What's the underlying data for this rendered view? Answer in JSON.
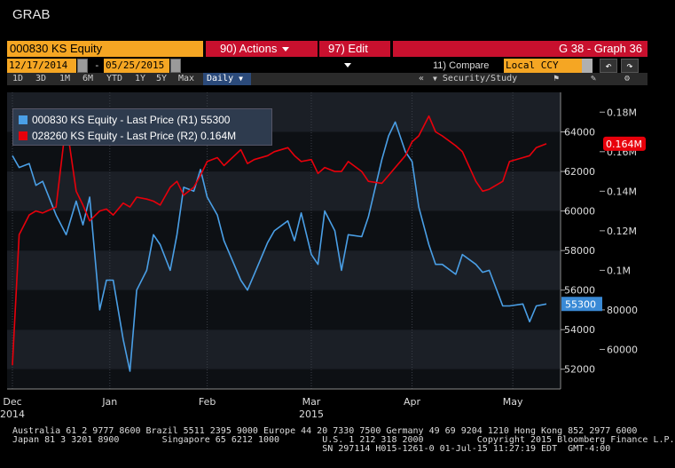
{
  "app_title": "GRAB",
  "header": {
    "security": "000830 KS Equity",
    "actions": "90) Actions",
    "edit": "97) Edit",
    "graph_id": "G 38 - Graph 36",
    "date_start": "12/17/2014",
    "date_end": "05/25/2015",
    "date_sep": "-",
    "compare_label": "11) Compare",
    "currency": "Local CCY",
    "ranges": [
      "1D",
      "3D",
      "1M",
      "6M",
      "YTD",
      "1Y",
      "5Y",
      "Max"
    ],
    "frequency": "Daily",
    "security_study": "Security/Study",
    "icons": [
      "back-arrow-icon",
      "forward-arrow-icon",
      "collapse-icon",
      "dropdown-icon",
      "flag-icon",
      "edit-icon",
      "gear-icon"
    ]
  },
  "legend": {
    "entries": [
      {
        "label": "000830 KS Equity - Last Price (R1) 55300",
        "color": "#4a9fe6"
      },
      {
        "label": "028260 KS Equity - Last Price (R2) 0.164M",
        "color": "#e8000b"
      }
    ]
  },
  "footer": {
    "lines": [
      "Australia 61 2 9777 8600 Brazil 5511 2395 9000 Europe 44 20 7330 7500 Germany 49 69 9204 1210 Hong Kong 852 2977 6000",
      "Japan 81 3 3201 8900        Singapore 65 6212 1000        U.S. 1 212 318 2000          Copyright 2015 Bloomberg Finance L.P.",
      "                                                          SN 297114 H015-1261-0 01-Jul-15 11:27:19 EDT  GMT-4:00"
    ]
  },
  "chart_data": {
    "type": "line",
    "x_axis_labels": [
      {
        "month": "Dec",
        "year": "2014",
        "date": "2014-12-17"
      },
      {
        "month": "Jan",
        "year": "",
        "date": "2015-01-15"
      },
      {
        "month": "Feb",
        "year": "",
        "date": "2015-02-13"
      },
      {
        "month": "Mar",
        "year": "2015",
        "date": "2015-03-16"
      },
      {
        "month": "Apr",
        "year": "",
        "date": "2015-04-15"
      },
      {
        "month": "May",
        "year": "",
        "date": "2015-05-15"
      }
    ],
    "x_range": [
      "2014-12-17",
      "2015-05-25"
    ],
    "axes": {
      "R1": {
        "ticks": [
          52000,
          54000,
          56000,
          58000,
          60000,
          62000,
          64000
        ],
        "range": [
          51000,
          66000
        ]
      },
      "R2": {
        "ticks": [
          60000,
          80000,
          100000,
          120000,
          140000,
          160000,
          180000
        ],
        "tick_labels": [
          "60000",
          "80000",
          "0.1M",
          "0.12M",
          "0.14M",
          "0.16M",
          "0.18M"
        ],
        "range": [
          40000,
          190000
        ]
      }
    },
    "last_value_labels": {
      "R1": "55300",
      "R2": "0.164M"
    },
    "series": [
      {
        "name": "000830 KS Equity - Last Price (R1)",
        "axis": "R1",
        "color": "#4a9fe6",
        "x": [
          "2014-12-17",
          "2014-12-19",
          "2014-12-22",
          "2014-12-24",
          "2014-12-26",
          "2014-12-30",
          "2015-01-02",
          "2015-01-05",
          "2015-01-07",
          "2015-01-09",
          "2015-01-12",
          "2015-01-14",
          "2015-01-16",
          "2015-01-19",
          "2015-01-21",
          "2015-01-23",
          "2015-01-26",
          "2015-01-28",
          "2015-01-30",
          "2015-02-02",
          "2015-02-04",
          "2015-02-06",
          "2015-02-09",
          "2015-02-11",
          "2015-02-13",
          "2015-02-16",
          "2015-02-18",
          "2015-02-23",
          "2015-02-25",
          "2015-02-27",
          "2015-03-03",
          "2015-03-05",
          "2015-03-09",
          "2015-03-11",
          "2015-03-13",
          "2015-03-16",
          "2015-03-18",
          "2015-03-20",
          "2015-03-23",
          "2015-03-25",
          "2015-03-27",
          "2015-03-31",
          "2015-04-02",
          "2015-04-06",
          "2015-04-08",
          "2015-04-10",
          "2015-04-13",
          "2015-04-15",
          "2015-04-17",
          "2015-04-20",
          "2015-04-22",
          "2015-04-24",
          "2015-04-28",
          "2015-04-30",
          "2015-05-04",
          "2015-05-06",
          "2015-05-08",
          "2015-05-12",
          "2015-05-14",
          "2015-05-18",
          "2015-05-20",
          "2015-05-22",
          "2015-05-25"
        ],
        "values": [
          62800,
          62200,
          62400,
          61300,
          61500,
          59800,
          58800,
          60500,
          59300,
          60700,
          55000,
          56500,
          56500,
          53500,
          51900,
          56000,
          57000,
          58800,
          58300,
          57000,
          58800,
          61200,
          61000,
          62100,
          60700,
          59800,
          58500,
          56500,
          56000,
          56800,
          58400,
          59000,
          59500,
          58500,
          59900,
          57800,
          57300,
          60000,
          59000,
          57000,
          58800,
          58700,
          59700,
          62600,
          63800,
          64500,
          63000,
          62500,
          60200,
          58300,
          57300,
          57300,
          56800,
          57800,
          57300,
          56900,
          57000,
          55200,
          55200,
          55300,
          54400,
          55200,
          55300
        ]
      },
      {
        "name": "028260 KS Equity - Last Price (R2)",
        "axis": "R2",
        "color": "#e8000b",
        "x": [
          "2014-12-17",
          "2014-12-19",
          "2014-12-22",
          "2014-12-24",
          "2014-12-26",
          "2014-12-30",
          "2015-01-02",
          "2015-01-05",
          "2015-01-07",
          "2015-01-09",
          "2015-01-12",
          "2015-01-14",
          "2015-01-16",
          "2015-01-19",
          "2015-01-21",
          "2015-01-23",
          "2015-01-26",
          "2015-01-28",
          "2015-01-30",
          "2015-02-02",
          "2015-02-04",
          "2015-02-06",
          "2015-02-09",
          "2015-02-11",
          "2015-02-13",
          "2015-02-16",
          "2015-02-18",
          "2015-02-23",
          "2015-02-25",
          "2015-02-27",
          "2015-03-03",
          "2015-03-05",
          "2015-03-09",
          "2015-03-11",
          "2015-03-13",
          "2015-03-16",
          "2015-03-18",
          "2015-03-20",
          "2015-03-23",
          "2015-03-25",
          "2015-03-27",
          "2015-03-31",
          "2015-04-02",
          "2015-04-06",
          "2015-04-08",
          "2015-04-10",
          "2015-04-13",
          "2015-04-15",
          "2015-04-17",
          "2015-04-20",
          "2015-04-22",
          "2015-04-24",
          "2015-04-28",
          "2015-04-30",
          "2015-05-04",
          "2015-05-06",
          "2015-05-08",
          "2015-05-12",
          "2015-05-14",
          "2015-05-18",
          "2015-05-20",
          "2015-05-22",
          "2015-05-25"
        ],
        "values": [
          52000,
          118000,
          128000,
          130000,
          129000,
          132000,
          175000,
          140000,
          133000,
          125000,
          130000,
          131000,
          128000,
          134000,
          132000,
          137000,
          136000,
          135000,
          133000,
          142000,
          145000,
          138000,
          142000,
          148000,
          155000,
          157000,
          153000,
          161000,
          154000,
          156000,
          158000,
          160000,
          162000,
          158000,
          155000,
          156000,
          149000,
          152000,
          150000,
          150000,
          155000,
          150000,
          145000,
          144000,
          148000,
          152000,
          158000,
          165000,
          168000,
          178000,
          170000,
          168000,
          163000,
          160000,
          145000,
          140000,
          141000,
          145000,
          155000,
          157000,
          158000,
          162000,
          164000
        ]
      }
    ]
  }
}
